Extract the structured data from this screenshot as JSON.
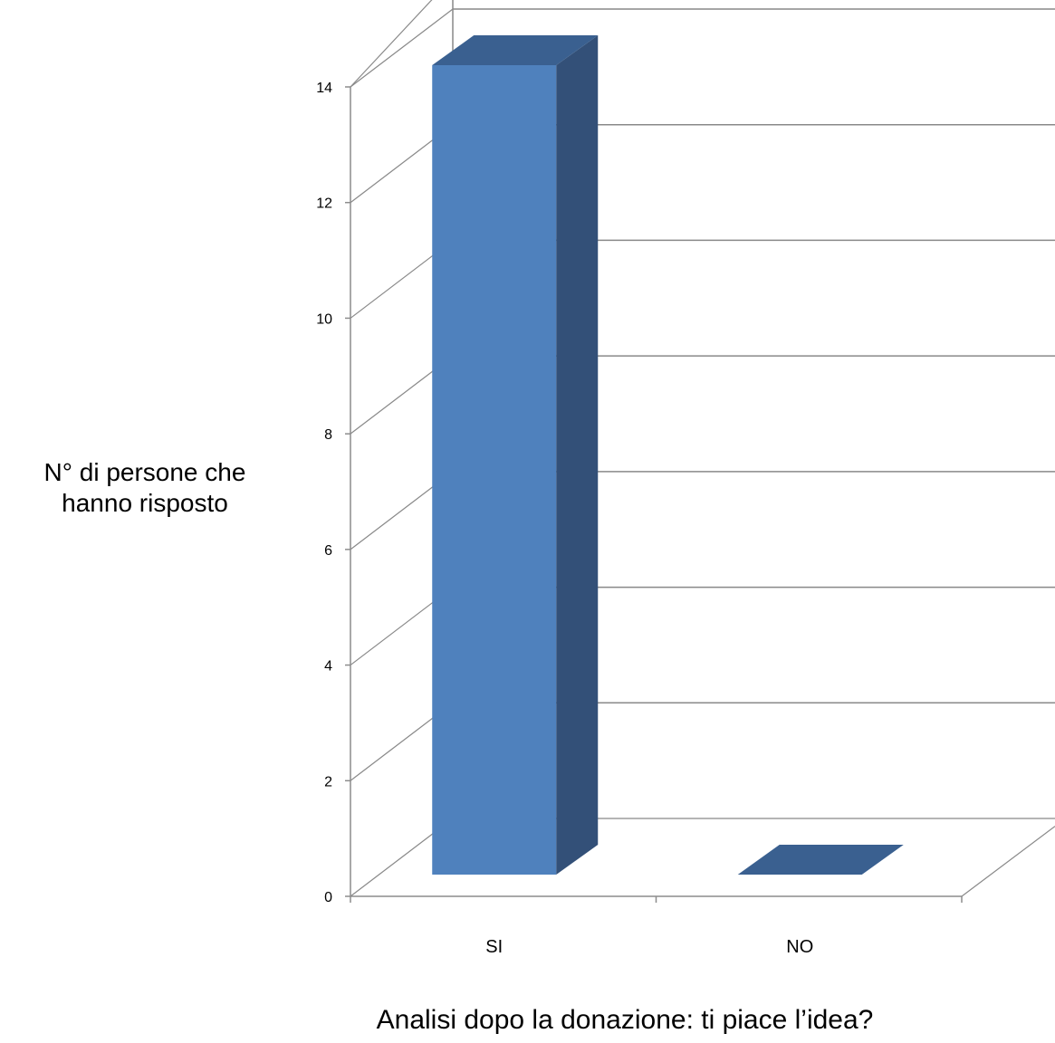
{
  "chart_data": {
    "type": "bar",
    "title": "",
    "xlabel": "Analisi dopo la donazione: ti piace l’idea?",
    "ylabel_lines": [
      "N° di persone che",
      "hanno risposto"
    ],
    "categories": [
      "SI",
      "NO"
    ],
    "series": [
      {
        "values": [
          14,
          0
        ]
      }
    ],
    "ylim": [
      0,
      14
    ],
    "y_ticks": [
      0,
      2,
      4,
      6,
      8,
      10,
      12,
      14
    ],
    "grid": true,
    "legend": "none",
    "style": "3d-column"
  },
  "colors": {
    "bar_front": "#4F81BD",
    "bar_top": "#3A6090",
    "bar_side": "#335078",
    "gridline": "#898989",
    "axis": "#8c8c8c"
  }
}
